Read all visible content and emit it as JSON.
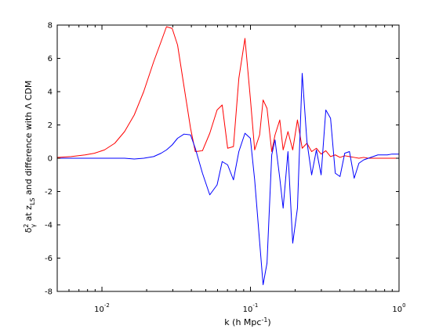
{
  "chart_data": {
    "type": "line",
    "title": "",
    "xlabel_main": "k (h Mpc",
    "xlabel_sup": "-1",
    "xlabel_end": ")",
    "ylabel_delta": "δ",
    "ylabel_delta_sup": "2",
    "ylabel_delta_sub": "γ",
    "ylabel_mid": " at z",
    "ylabel_z_sub": "LS",
    "ylabel_rest": "  and difference with Λ CDM",
    "x_scale": "log",
    "xlim": [
      0.005,
      1.0
    ],
    "ylim": [
      -8,
      8
    ],
    "grid": false,
    "legend": "none",
    "x_ticks": [
      {
        "value": 0.01,
        "base": "10",
        "exp": "-2"
      },
      {
        "value": 0.1,
        "base": "10",
        "exp": "-1"
      },
      {
        "value": 1.0,
        "base": "10",
        "exp": "0"
      }
    ],
    "y_ticks": [
      {
        "value": -8,
        "label": "-8"
      },
      {
        "value": -6,
        "label": "-6"
      },
      {
        "value": -4,
        "label": "-4"
      },
      {
        "value": -2,
        "label": "-2"
      },
      {
        "value": 0,
        "label": "0"
      },
      {
        "value": 2,
        "label": "2"
      },
      {
        "value": 4,
        "label": "4"
      },
      {
        "value": 6,
        "label": "6"
      },
      {
        "value": 8,
        "label": "8"
      }
    ],
    "series": [
      {
        "color": "#ff0000",
        "x": [
          0.005,
          0.0062,
          0.0077,
          0.0089,
          0.0104,
          0.0122,
          0.0142,
          0.0165,
          0.0191,
          0.0223,
          0.025,
          0.0272,
          0.0297,
          0.0323,
          0.0357,
          0.0395,
          0.0425,
          0.0475,
          0.0532,
          0.0596,
          0.0645,
          0.0702,
          0.0768,
          0.0835,
          0.0918,
          0.0998,
          0.1067,
          0.1152,
          0.1216,
          0.1292,
          0.139,
          0.1463,
          0.1575,
          0.1659,
          0.1788,
          0.1925,
          0.2071,
          0.2229,
          0.2399,
          0.2581,
          0.2778,
          0.2989,
          0.3215,
          0.346,
          0.3723,
          0.4006,
          0.4311,
          0.4639,
          0.4992,
          0.5371,
          0.578,
          0.6219,
          0.6692,
          0.7201,
          0.7749,
          0.8338,
          0.8972,
          0.9654,
          1.0
        ],
        "values": [
          0.05,
          0.1,
          0.2,
          0.3,
          0.5,
          0.9,
          1.6,
          2.6,
          4.0,
          5.8,
          7.0,
          7.9,
          7.8,
          6.8,
          4.3,
          1.8,
          0.4,
          0.45,
          1.5,
          2.9,
          3.2,
          0.6,
          0.7,
          4.8,
          7.2,
          3.6,
          0.5,
          1.4,
          3.5,
          3.0,
          0.4,
          1.4,
          2.3,
          0.5,
          1.6,
          0.5,
          2.3,
          0.6,
          0.9,
          0.4,
          0.6,
          0.25,
          0.45,
          0.1,
          0.2,
          0.05,
          0.15,
          0.1,
          0.05,
          0.0,
          0.05,
          0.0,
          0.0,
          0.0,
          0.0,
          0.0,
          0.0,
          0.0,
          0.0
        ]
      },
      {
        "color": "#0000ff",
        "x": [
          0.005,
          0.0062,
          0.0077,
          0.0089,
          0.0104,
          0.0122,
          0.0142,
          0.0165,
          0.0191,
          0.0223,
          0.025,
          0.0272,
          0.0297,
          0.0323,
          0.0357,
          0.0395,
          0.0425,
          0.0475,
          0.0532,
          0.0596,
          0.0645,
          0.0702,
          0.0768,
          0.0835,
          0.0918,
          0.0998,
          0.1067,
          0.1152,
          0.1216,
          0.1292,
          0.139,
          0.1463,
          0.1575,
          0.1659,
          0.1788,
          0.1925,
          0.2071,
          0.2229,
          0.2399,
          0.2581,
          0.2778,
          0.2989,
          0.3215,
          0.346,
          0.3723,
          0.4006,
          0.4311,
          0.4639,
          0.4992,
          0.5371,
          0.578,
          0.6219,
          0.6692,
          0.7201,
          0.7749,
          0.8338,
          0.8972,
          0.9654,
          1.0
        ],
        "values": [
          0.0,
          0.0,
          0.0,
          0.0,
          0.0,
          0.0,
          0.0,
          -0.05,
          0.0,
          0.1,
          0.3,
          0.5,
          0.8,
          1.2,
          1.45,
          1.4,
          0.6,
          -0.9,
          -2.2,
          -1.6,
          -0.2,
          -0.4,
          -1.3,
          0.4,
          1.5,
          1.2,
          -1.3,
          -5.0,
          -7.6,
          -6.3,
          0.2,
          1.1,
          -1.2,
          -3.0,
          0.4,
          -5.1,
          -3.0,
          5.1,
          1.0,
          -1.0,
          0.5,
          -1.0,
          2.9,
          2.4,
          -0.9,
          -1.1,
          0.3,
          0.4,
          -1.2,
          -0.3,
          -0.1,
          0.0,
          0.1,
          0.2,
          0.2,
          0.2,
          0.25,
          0.25,
          0.25
        ]
      }
    ]
  }
}
